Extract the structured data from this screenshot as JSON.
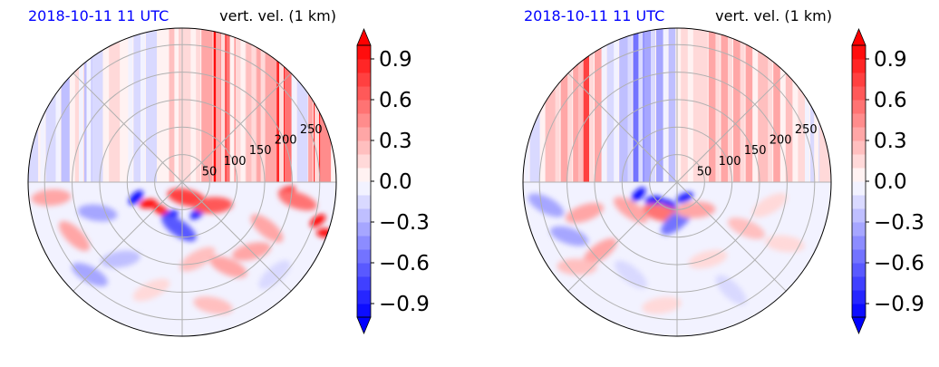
{
  "colors": {
    "title_date": "#0000ff",
    "grid": "#b0b0b0",
    "colormap": "bwr"
  },
  "panels": [
    {
      "title_left": "2018-10-11 11 UTC",
      "title_right": "vert. vel. (1 km)",
      "radial_tick_labels": [
        "50",
        "100",
        "150",
        "200",
        "250"
      ]
    },
    {
      "title_left": "2018-10-11 11 UTC",
      "title_right": "vert. vel. (1 km)",
      "radial_tick_labels": [
        "50",
        "100",
        "150",
        "200",
        "250"
      ]
    }
  ],
  "chart_data": [
    {
      "type": "heatmap",
      "projection": "polar",
      "title": "2018-10-11 11 UTC   vert. vel. (1 km)",
      "r_ticks": [
        50,
        100,
        150,
        200,
        250
      ],
      "rlim": [
        0,
        280
      ],
      "theta_gridlines_deg": [
        0,
        45,
        90,
        135,
        180,
        225,
        270,
        315
      ],
      "grid": true,
      "field_description_note": "",
      "colorbar": {
        "min": -1.0,
        "max": 1.0,
        "levels": 20,
        "extend": "both",
        "ticks": [
          -0.9,
          -0.6,
          -0.3,
          0.0,
          0.3,
          0.6,
          0.9
        ],
        "tick_labels": [
          "−0.9",
          "−0.6",
          "−0.3",
          "0.0",
          "0.3",
          "0.6",
          "0.9"
        ]
      },
      "upper_stripes": [
        {
          "x": -0.97,
          "v": -0.14
        },
        {
          "x": -0.85,
          "v": -0.18
        },
        {
          "x": -0.75,
          "v": -0.22
        },
        {
          "x": -0.66,
          "v": 0.12
        },
        {
          "x": -0.6,
          "v": -0.28
        },
        {
          "x": -0.55,
          "v": -0.2
        },
        {
          "x": -0.44,
          "v": 0.2
        },
        {
          "x": -0.28,
          "v": -0.16
        },
        {
          "x": -0.2,
          "v": -0.14
        },
        {
          "x": -0.05,
          "v": 0.24
        },
        {
          "x": 0.02,
          "v": 0.2
        },
        {
          "x": 0.16,
          "v": 0.34
        },
        {
          "x": 0.23,
          "v": 0.95
        },
        {
          "x": 0.28,
          "v": 0.92
        },
        {
          "x": 0.32,
          "v": 0.55
        },
        {
          "x": 0.38,
          "v": 0.2
        },
        {
          "x": 0.45,
          "v": 0.25
        },
        {
          "x": 0.52,
          "v": 0.3
        },
        {
          "x": 0.58,
          "v": 0.35
        },
        {
          "x": 0.64,
          "v": 0.9
        },
        {
          "x": 0.7,
          "v": 0.55
        },
        {
          "x": 0.78,
          "v": -0.2
        },
        {
          "x": 0.88,
          "v": 0.98
        },
        {
          "x": 0.93,
          "v": 0.45
        }
      ],
      "lower_blobs": [
        {
          "x": -0.3,
          "y": -0.1,
          "v": -0.95
        },
        {
          "x": -0.22,
          "y": -0.14,
          "v": 0.95
        },
        {
          "x": -0.14,
          "y": -0.18,
          "v": 0.9
        },
        {
          "x": -0.08,
          "y": -0.22,
          "v": -0.9
        },
        {
          "x": 0.03,
          "y": -0.1,
          "v": 0.7
        },
        {
          "x": 0.1,
          "y": -0.2,
          "v": -0.8
        },
        {
          "x": 0.2,
          "y": -0.15,
          "v": 0.6
        },
        {
          "x": -0.02,
          "y": -0.3,
          "v": -0.7
        },
        {
          "x": 0.68,
          "y": -0.06,
          "v": 0.95
        },
        {
          "x": 0.75,
          "y": -0.12,
          "v": 0.55
        },
        {
          "x": 0.88,
          "y": -0.25,
          "v": 0.95
        },
        {
          "x": 0.93,
          "y": -0.33,
          "v": 0.95
        },
        {
          "x": 0.55,
          "y": -0.3,
          "v": 0.35
        },
        {
          "x": 0.45,
          "y": -0.45,
          "v": 0.4
        },
        {
          "x": 0.3,
          "y": -0.55,
          "v": 0.3
        },
        {
          "x": 0.1,
          "y": -0.5,
          "v": 0.25
        },
        {
          "x": -0.55,
          "y": -0.2,
          "v": -0.3
        },
        {
          "x": -0.7,
          "y": -0.35,
          "v": 0.3
        },
        {
          "x": -0.4,
          "y": -0.5,
          "v": -0.25
        },
        {
          "x": -0.6,
          "y": -0.6,
          "v": -0.3
        },
        {
          "x": -0.2,
          "y": -0.7,
          "v": 0.2
        },
        {
          "x": 0.2,
          "y": -0.8,
          "v": 0.25
        },
        {
          "x": 0.6,
          "y": -0.6,
          "v": -0.2
        },
        {
          "x": -0.85,
          "y": -0.1,
          "v": 0.3
        }
      ]
    },
    {
      "type": "heatmap",
      "projection": "polar",
      "title": "2018-10-11 11 UTC   vert. vel. (1 km)",
      "r_ticks": [
        50,
        100,
        150,
        200,
        250
      ],
      "rlim": [
        0,
        280
      ],
      "theta_gridlines_deg": [
        0,
        45,
        90,
        135,
        180,
        225,
        270,
        315
      ],
      "grid": true,
      "field_description_note": "",
      "colorbar": {
        "min": -1.0,
        "max": 1.0,
        "levels": 20,
        "extend": "both",
        "ticks": [
          -0.9,
          -0.6,
          -0.3,
          0.0,
          0.3,
          0.6,
          0.9
        ],
        "tick_labels": [
          "−0.9",
          "−0.6",
          "−0.3",
          "0.0",
          "0.3",
          "0.6",
          "0.9"
        ]
      },
      "upper_stripes": [
        {
          "x": -0.92,
          "v": -0.16
        },
        {
          "x": -0.82,
          "v": 0.22
        },
        {
          "x": -0.72,
          "v": 0.3
        },
        {
          "x": -0.64,
          "v": 0.35
        },
        {
          "x": -0.58,
          "v": 0.75
        },
        {
          "x": -0.5,
          "v": 0.3
        },
        {
          "x": -0.42,
          "v": -0.2
        },
        {
          "x": -0.34,
          "v": -0.22
        },
        {
          "x": -0.25,
          "v": -0.55
        },
        {
          "x": -0.18,
          "v": -0.35
        },
        {
          "x": -0.1,
          "v": -0.3
        },
        {
          "x": -0.02,
          "v": -0.25
        },
        {
          "x": 0.06,
          "v": 0.2
        },
        {
          "x": 0.14,
          "v": 0.15
        },
        {
          "x": 0.24,
          "v": 0.3
        },
        {
          "x": 0.32,
          "v": 0.4
        },
        {
          "x": 0.4,
          "v": 0.35
        },
        {
          "x": 0.48,
          "v": 0.3
        },
        {
          "x": 0.56,
          "v": 0.25
        },
        {
          "x": 0.66,
          "v": 0.35
        },
        {
          "x": 0.74,
          "v": 0.25
        },
        {
          "x": 0.82,
          "v": 0.2
        },
        {
          "x": 0.9,
          "v": -0.15
        },
        {
          "x": 0.96,
          "v": 0.12
        }
      ],
      "lower_blobs": [
        {
          "x": -0.25,
          "y": -0.08,
          "v": -0.9
        },
        {
          "x": -0.15,
          "y": -0.12,
          "v": -0.95
        },
        {
          "x": -0.05,
          "y": -0.15,
          "v": -0.9
        },
        {
          "x": 0.05,
          "y": -0.1,
          "v": -0.85
        },
        {
          "x": -0.1,
          "y": -0.2,
          "v": 0.5
        },
        {
          "x": 0.0,
          "y": -0.25,
          "v": -0.6
        },
        {
          "x": 0.12,
          "y": -0.18,
          "v": 0.4
        },
        {
          "x": -0.3,
          "y": -0.18,
          "v": 0.4
        },
        {
          "x": -0.6,
          "y": -0.2,
          "v": 0.35
        },
        {
          "x": -0.7,
          "y": -0.35,
          "v": -0.35
        },
        {
          "x": -0.5,
          "y": -0.45,
          "v": 0.3
        },
        {
          "x": -0.65,
          "y": -0.55,
          "v": 0.25
        },
        {
          "x": -0.3,
          "y": -0.6,
          "v": -0.2
        },
        {
          "x": 0.2,
          "y": -0.5,
          "v": 0.2
        },
        {
          "x": 0.45,
          "y": -0.3,
          "v": 0.25
        },
        {
          "x": 0.6,
          "y": -0.15,
          "v": 0.2
        },
        {
          "x": 0.7,
          "y": -0.4,
          "v": 0.2
        },
        {
          "x": 0.35,
          "y": -0.7,
          "v": -0.15
        },
        {
          "x": -0.1,
          "y": -0.8,
          "v": 0.15
        },
        {
          "x": -0.85,
          "y": -0.15,
          "v": -0.3
        }
      ]
    }
  ]
}
